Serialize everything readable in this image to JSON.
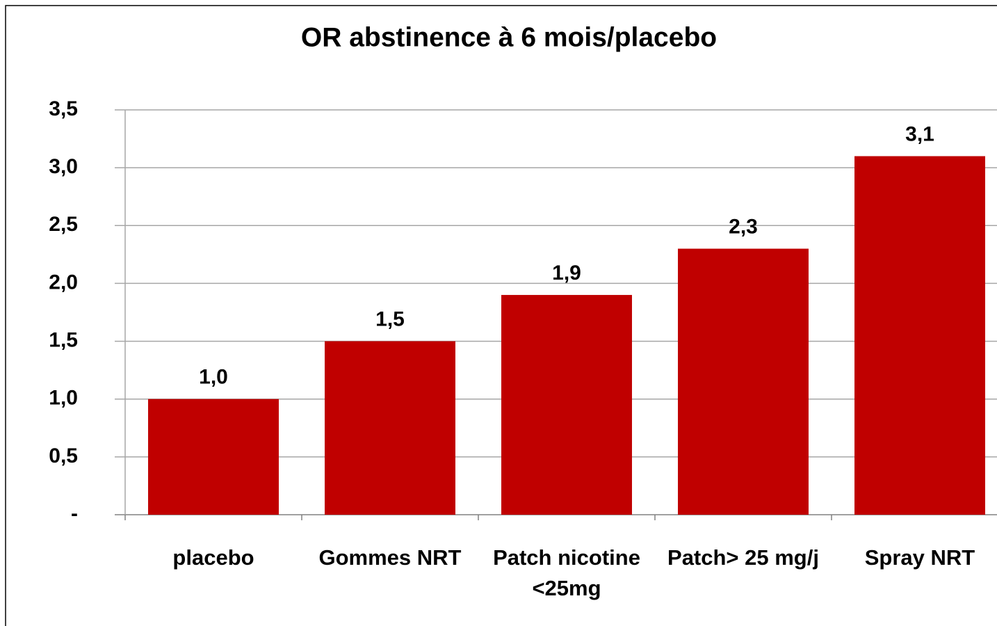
{
  "chart_data": {
    "type": "bar",
    "title": "OR abstinence à 6 mois/placebo",
    "categories": [
      "placebo",
      "Gommes NRT",
      "Patch nicotine <25mg",
      "Patch> 25 mg/j",
      "Spray NRT"
    ],
    "values": [
      1.0,
      1.5,
      1.9,
      2.3,
      3.1
    ],
    "value_labels": [
      "1,0",
      "1,5",
      "1,9",
      "2,3",
      "3,1"
    ],
    "color": "#c00000",
    "ylim": [
      0,
      3.5
    ],
    "yticks": [
      {
        "value": 0,
        "label": "-"
      },
      {
        "value": 0.5,
        "label": "0,5"
      },
      {
        "value": 1.0,
        "label": "1,0"
      },
      {
        "value": 1.5,
        "label": "1,5"
      },
      {
        "value": 2.0,
        "label": "2,0"
      },
      {
        "value": 2.5,
        "label": "2,5"
      },
      {
        "value": 3.0,
        "label": "3,0"
      },
      {
        "value": 3.5,
        "label": "3,5"
      }
    ],
    "grid": true
  }
}
